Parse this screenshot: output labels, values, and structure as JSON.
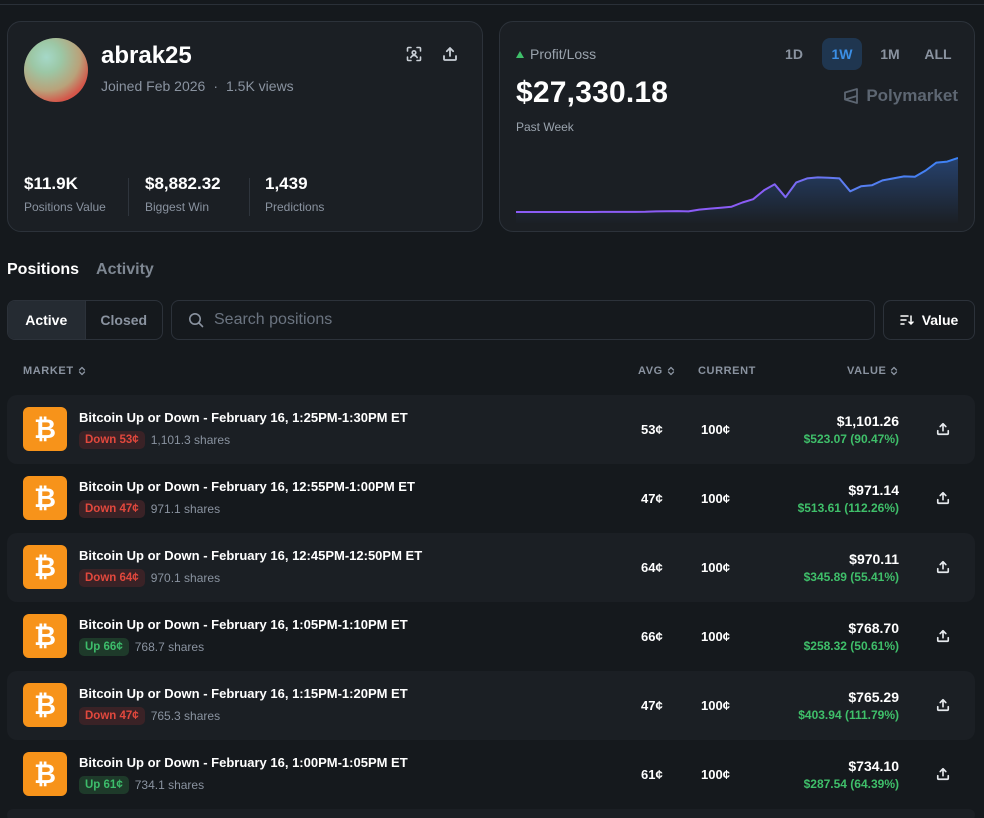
{
  "profile": {
    "username": "abrak25",
    "joined": "Joined Feb 2026",
    "separator": "·",
    "views": "1.5K views",
    "stats": [
      {
        "value": "$11.9K",
        "label": "Positions Value"
      },
      {
        "value": "$8,882.32",
        "label": "Biggest Win"
      },
      {
        "value": "1,439",
        "label": "Predictions"
      }
    ]
  },
  "pnl": {
    "label": "Profit/Loss",
    "amount": "$27,330.18",
    "period": "Past Week",
    "brand": "Polymarket",
    "ranges": [
      "1D",
      "1W",
      "1M",
      "ALL"
    ],
    "active_range": "1W",
    "colors": {
      "accent": "#3b8fe6",
      "line_start": "#8b5cf6",
      "line_end": "#3b82f6",
      "positive": "#3fbf6a"
    }
  },
  "chart_data": {
    "type": "line",
    "title": "",
    "x": [
      0,
      1,
      2,
      3,
      4,
      5,
      6,
      7,
      8,
      9,
      10,
      11,
      12,
      13,
      14,
      15,
      16,
      17,
      18,
      19,
      20,
      21,
      22,
      23,
      24,
      25,
      26,
      27,
      28,
      29,
      30,
      31,
      32,
      33,
      34,
      35,
      36,
      37,
      38,
      39,
      40,
      41
    ],
    "series": [
      {
        "values": [
          0,
          0,
          0,
          0,
          0,
          0,
          0,
          0,
          50,
          50,
          50,
          50,
          80,
          300,
          420,
          480,
          300,
          1200,
          1700,
          2200,
          2700,
          4800,
          6500,
          11000,
          14000,
          7500,
          15000,
          17000,
          17500,
          17300,
          17000,
          10500,
          13000,
          13500,
          16000,
          17000,
          18000,
          17800,
          21000,
          25000,
          25500,
          27330
        ]
      }
    ],
    "xlabel": "",
    "ylabel": ""
  },
  "tabs": {
    "positions": "Positions",
    "activity": "Activity"
  },
  "filters": {
    "active": "Active",
    "closed": "Closed",
    "search_placeholder": "Search positions",
    "sort_label": "Value"
  },
  "table": {
    "headers": {
      "market": "MARKET",
      "avg": "AVG",
      "current": "CURRENT",
      "value": "VALUE"
    },
    "rows": [
      {
        "title": "Bitcoin Up or Down - February 16, 1:25PM-1:30PM ET",
        "outcome": "Down 53¢",
        "direction": "down",
        "shares": "1,101.3 shares",
        "avg": "53¢",
        "current": "100¢",
        "value": "$1,101.26",
        "gain": "$523.07 (90.47%)"
      },
      {
        "title": "Bitcoin Up or Down - February 16, 12:55PM-1:00PM ET",
        "outcome": "Down 47¢",
        "direction": "down",
        "shares": "971.1 shares",
        "avg": "47¢",
        "current": "100¢",
        "value": "$971.14",
        "gain": "$513.61 (112.26%)"
      },
      {
        "title": "Bitcoin Up or Down - February 16, 12:45PM-12:50PM ET",
        "outcome": "Down 64¢",
        "direction": "down",
        "shares": "970.1 shares",
        "avg": "64¢",
        "current": "100¢",
        "value": "$970.11",
        "gain": "$345.89 (55.41%)"
      },
      {
        "title": "Bitcoin Up or Down - February 16, 1:05PM-1:10PM ET",
        "outcome": "Up 66¢",
        "direction": "up",
        "shares": "768.7 shares",
        "avg": "66¢",
        "current": "100¢",
        "value": "$768.70",
        "gain": "$258.32 (50.61%)"
      },
      {
        "title": "Bitcoin Up or Down - February 16, 1:15PM-1:20PM ET",
        "outcome": "Down 47¢",
        "direction": "down",
        "shares": "765.3 shares",
        "avg": "47¢",
        "current": "100¢",
        "value": "$765.29",
        "gain": "$403.94 (111.79%)"
      },
      {
        "title": "Bitcoin Up or Down - February 16, 1:00PM-1:05PM ET",
        "outcome": "Up 61¢",
        "direction": "up",
        "shares": "734.1 shares",
        "avg": "61¢",
        "current": "100¢",
        "value": "$734.10",
        "gain": "$287.54 (64.39%)"
      }
    ]
  },
  "icons": {
    "market": "bitcoin-icon",
    "share": "upload-icon",
    "scan": "scan-icon",
    "search": "search-icon",
    "sort": "sort-icon"
  }
}
